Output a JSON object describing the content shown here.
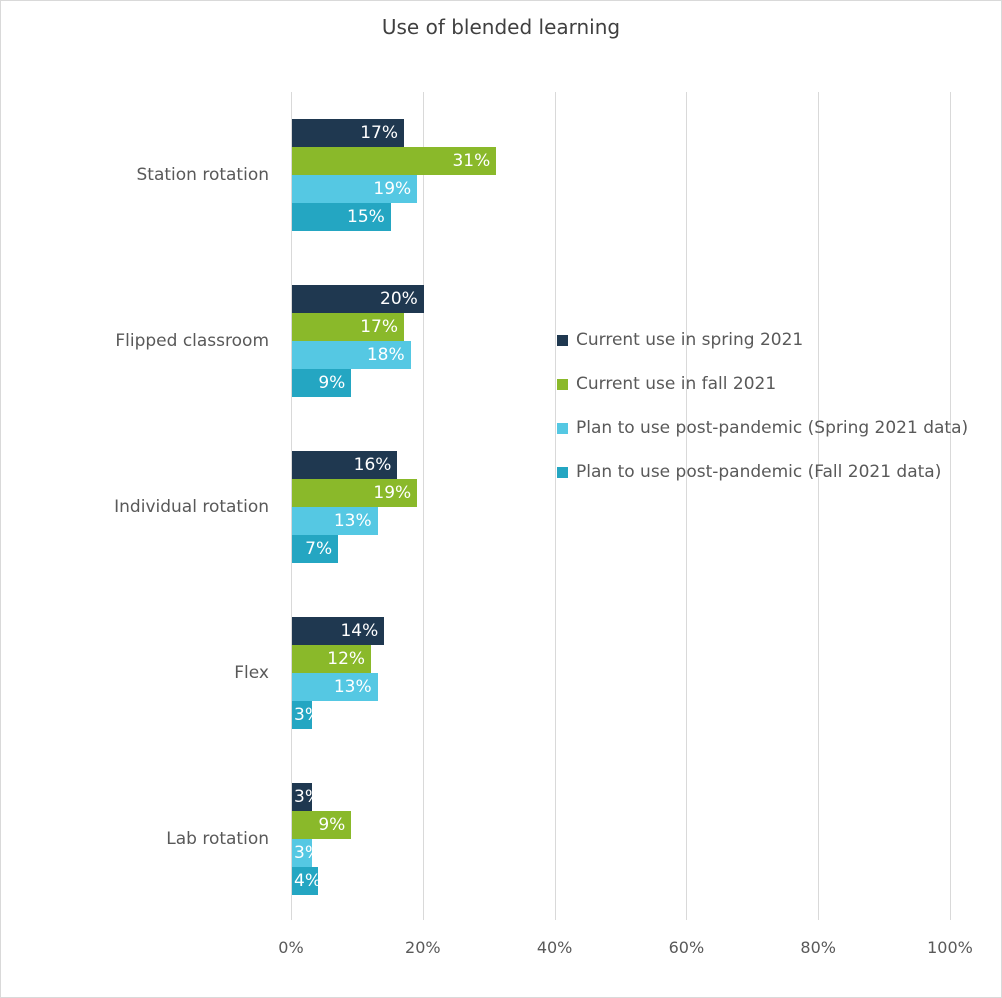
{
  "chart_data": {
    "type": "bar",
    "orientation": "horizontal",
    "title": "Use of blended learning",
    "categories": [
      "Station rotation",
      "Flipped classroom",
      "Individual rotation",
      "Flex",
      "Lab rotation"
    ],
    "series": [
      {
        "name": "Current use in spring 2021",
        "color": "#1f3850",
        "values": [
          17,
          20,
          16,
          14,
          3
        ],
        "labels": [
          "17%",
          "20%",
          "16%",
          "14%",
          "3%"
        ]
      },
      {
        "name": "Current use in fall 2021",
        "color": "#8ab92a",
        "values": [
          31,
          17,
          19,
          12,
          9
        ],
        "labels": [
          "31%",
          "17%",
          "19%",
          "12%",
          "9%"
        ]
      },
      {
        "name": "Plan to use post-pandemic (Spring 2021 data)",
        "color": "#55c8e3",
        "values": [
          19,
          18,
          13,
          13,
          3
        ],
        "labels": [
          "19%",
          "18%",
          "13%",
          "13%",
          "3%"
        ]
      },
      {
        "name": "Plan to use post-pandemic (Fall 2021 data)",
        "color": "#24a6c2",
        "values": [
          15,
          9,
          7,
          3,
          4
        ],
        "labels": [
          "15%",
          "9%",
          "7%",
          "3%",
          "4%"
        ]
      }
    ],
    "xlim": [
      0,
      100
    ],
    "xticks": [
      "0%",
      "20%",
      "40%",
      "60%",
      "80%",
      "100%"
    ],
    "grid": true,
    "legend_position": "right"
  }
}
